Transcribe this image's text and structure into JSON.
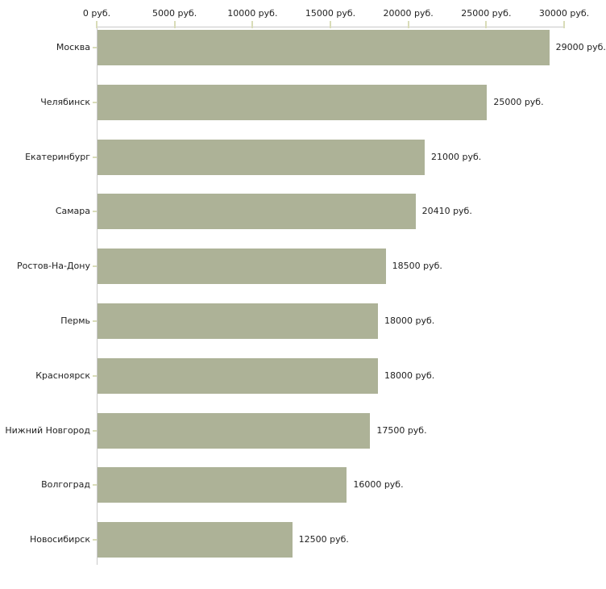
{
  "chart_data": {
    "type": "bar",
    "orientation": "horizontal",
    "title": "",
    "categories": [
      "Москва",
      "Челябинск",
      "Екатеринбург",
      "Самара",
      "Ростов-На-Дону",
      "Пермь",
      "Красноярск",
      "Нижний Новгород",
      "Волгоград",
      "Новосибирск"
    ],
    "values": [
      29000,
      25000,
      21000,
      20410,
      18500,
      18000,
      18000,
      17500,
      16000,
      12500
    ],
    "value_labels": [
      "29000 руб.",
      "25000 руб.",
      "21000 руб.",
      "20410 руб.",
      "18500 руб.",
      "18000 руб.",
      "18000 руб.",
      "17500 руб.",
      "16000 руб.",
      "12500 руб."
    ],
    "x_axis": {
      "position": "top",
      "unit": "руб.",
      "range": [
        0,
        30000
      ],
      "ticks": [
        0,
        5000,
        10000,
        15000,
        20000,
        25000,
        30000
      ],
      "tick_labels": [
        "0 руб.",
        "5000 руб.",
        "10000 руб.",
        "15000 руб.",
        "20000 руб.",
        "25000 руб.",
        "30000 руб."
      ]
    },
    "grid": false,
    "legend": false,
    "colors": {
      "bar": "#adb297",
      "axis_line": "#c9c9c9",
      "tick_mark": "#d9dcb8",
      "text": "#222222",
      "background": "#ffffff"
    }
  }
}
